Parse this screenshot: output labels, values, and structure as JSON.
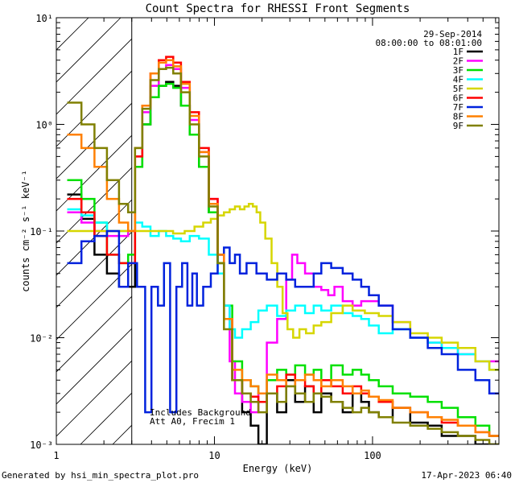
{
  "chart_data": {
    "type": "line",
    "title": "Count Spectra for RHESSI Front Segments",
    "xlabel": "Energy (keV)",
    "ylabel": "counts cm⁻² s⁻¹ keV⁻¹",
    "x_scale": "log",
    "y_scale": "log",
    "xlim": [
      1,
      630
    ],
    "ylim": [
      0.001,
      10
    ],
    "x_tick_labels": [
      "1",
      "10",
      "100"
    ],
    "y_tick_labels": [
      "10⁻³",
      "10⁻²",
      "10⁻¹",
      "10⁰",
      "10¹"
    ],
    "hatched_region_xmax": 3,
    "date": "29-Sep-2014",
    "time_range": "08:00:00 to 08:01:00",
    "annotations": [
      "Includes Background",
      "Att A0, Frecim 1"
    ],
    "legend_position": "top-right",
    "series": [
      {
        "name": "1F",
        "color": "#000000",
        "x": [
          1.3,
          1.6,
          1.9,
          2.3,
          2.7,
          3.0,
          3.3,
          3.7,
          4.2,
          4.7,
          5.2,
          5.8,
          6.5,
          7.5,
          8.5,
          10,
          11,
          12,
          14,
          16,
          18,
          20,
          23,
          27,
          30,
          35,
          40,
          45,
          50,
          60,
          70,
          80,
          90,
          100,
          120,
          150,
          200,
          250,
          300,
          400,
          500,
          600
        ],
        "y": [
          0.22,
          0.13,
          0.06,
          0.04,
          0.03,
          0.03,
          0.4,
          1.0,
          1.8,
          2.3,
          2.5,
          2.3,
          1.5,
          0.8,
          0.4,
          0.15,
          0.05,
          0.015,
          0.004,
          0.002,
          0.0015,
          0.001,
          0.003,
          0.002,
          0.004,
          0.0025,
          0.0035,
          0.002,
          0.003,
          0.0025,
          0.002,
          0.003,
          0.0025,
          0.002,
          0.0018,
          0.0022,
          0.0016,
          0.0015,
          0.0012,
          0.0012,
          0.001,
          0.001
        ]
      },
      {
        "name": "2F",
        "color": "#ff00ff",
        "x": [
          1.3,
          1.6,
          1.9,
          2.3,
          2.7,
          3.0,
          3.3,
          3.7,
          4.2,
          4.7,
          5.2,
          5.8,
          6.5,
          7.5,
          8.5,
          10,
          11,
          12,
          13,
          14,
          16,
          18,
          20,
          23,
          27,
          30,
          32,
          35,
          40,
          45,
          50,
          55,
          60,
          70,
          80,
          90,
          100,
          120,
          150,
          200,
          250,
          300,
          400,
          500,
          600
        ],
        "y": [
          0.15,
          0.12,
          0.1,
          0.09,
          0.09,
          0.1,
          0.5,
          1.3,
          2.3,
          3.3,
          3.6,
          3.3,
          2.2,
          1.1,
          0.55,
          0.2,
          0.06,
          0.02,
          0.006,
          0.003,
          0.0025,
          0.002,
          0.003,
          0.009,
          0.015,
          0.035,
          0.06,
          0.05,
          0.04,
          0.03,
          0.028,
          0.025,
          0.03,
          0.022,
          0.02,
          0.022,
          0.022,
          0.02,
          0.014,
          0.01,
          0.009,
          0.008,
          0.007,
          0.006,
          0.006
        ]
      },
      {
        "name": "3F",
        "color": "#00e000",
        "x": [
          1.3,
          1.6,
          1.9,
          2.3,
          2.7,
          3.0,
          3.3,
          3.7,
          4.2,
          4.7,
          5.2,
          5.8,
          6.5,
          7.5,
          8.5,
          10,
          11,
          12,
          14,
          16,
          18,
          20,
          23,
          27,
          30,
          35,
          40,
          45,
          50,
          60,
          70,
          80,
          90,
          100,
          120,
          150,
          200,
          250,
          300,
          400,
          500,
          600
        ],
        "y": [
          0.3,
          0.2,
          0.12,
          0.06,
          0.05,
          0.06,
          0.4,
          1.0,
          1.8,
          2.3,
          2.4,
          2.2,
          1.5,
          0.8,
          0.4,
          0.15,
          0.05,
          0.02,
          0.006,
          0.004,
          0.0035,
          0.003,
          0.004,
          0.005,
          0.0045,
          0.0055,
          0.0045,
          0.005,
          0.004,
          0.0055,
          0.0045,
          0.005,
          0.0045,
          0.004,
          0.0035,
          0.003,
          0.0028,
          0.0025,
          0.0022,
          0.0018,
          0.0015,
          0.0012
        ]
      },
      {
        "name": "4F",
        "color": "#00ffff",
        "x": [
          1.3,
          1.6,
          1.9,
          2.3,
          2.7,
          3.0,
          3.3,
          3.7,
          4.2,
          4.7,
          5.2,
          5.8,
          6.5,
          7.5,
          8.5,
          10,
          11,
          12,
          13,
          14,
          16,
          18,
          20,
          23,
          27,
          30,
          35,
          40,
          45,
          50,
          60,
          70,
          80,
          90,
          100,
          120,
          150,
          200,
          250,
          300,
          400,
          500,
          600
        ],
        "y": [
          0.16,
          0.14,
          0.12,
          0.1,
          0.1,
          0.1,
          0.12,
          0.11,
          0.09,
          0.1,
          0.09,
          0.085,
          0.08,
          0.09,
          0.085,
          0.06,
          0.04,
          0.02,
          0.012,
          0.01,
          0.012,
          0.014,
          0.018,
          0.02,
          0.016,
          0.018,
          0.02,
          0.017,
          0.02,
          0.018,
          0.02,
          0.017,
          0.016,
          0.015,
          0.013,
          0.011,
          0.012,
          0.01,
          0.009,
          0.008,
          0.007,
          0.006,
          0.005
        ]
      },
      {
        "name": "5F",
        "color": "#d6d600",
        "x": [
          1.3,
          1.6,
          1.9,
          2.3,
          2.7,
          3.0,
          3.5,
          4.0,
          4.5,
          5.0,
          6.0,
          7.0,
          8.0,
          9.0,
          10,
          11,
          12,
          13,
          14,
          15,
          16,
          17,
          18,
          19,
          20,
          22,
          24,
          26,
          28,
          30,
          33,
          36,
          40,
          45,
          50,
          60,
          70,
          80,
          100,
          120,
          150,
          200,
          250,
          300,
          400,
          500,
          600
        ],
        "y": [
          0.1,
          0.1,
          0.1,
          0.1,
          0.1,
          0.1,
          0.1,
          0.1,
          0.1,
          0.1,
          0.095,
          0.1,
          0.11,
          0.12,
          0.13,
          0.14,
          0.15,
          0.16,
          0.17,
          0.16,
          0.17,
          0.18,
          0.17,
          0.15,
          0.12,
          0.085,
          0.05,
          0.03,
          0.017,
          0.012,
          0.01,
          0.012,
          0.011,
          0.013,
          0.014,
          0.017,
          0.02,
          0.018,
          0.017,
          0.016,
          0.014,
          0.011,
          0.01,
          0.009,
          0.008,
          0.006,
          0.005
        ]
      },
      {
        "name": "6F",
        "color": "#ff0000",
        "x": [
          1.3,
          1.6,
          1.9,
          2.3,
          2.7,
          3.0,
          3.3,
          3.7,
          4.2,
          4.7,
          5.2,
          5.8,
          6.5,
          7.5,
          8.5,
          10,
          11,
          12,
          14,
          16,
          18,
          20,
          23,
          27,
          30,
          35,
          40,
          45,
          50,
          60,
          70,
          80,
          90,
          100,
          120,
          150,
          200,
          250,
          300,
          400,
          500,
          600
        ],
        "y": [
          0.2,
          0.15,
          0.09,
          0.06,
          0.05,
          0.05,
          0.5,
          1.5,
          3.0,
          4.0,
          4.3,
          3.8,
          2.5,
          1.3,
          0.6,
          0.2,
          0.06,
          0.015,
          0.004,
          0.003,
          0.0028,
          0.0025,
          0.003,
          0.0035,
          0.0045,
          0.004,
          0.0035,
          0.003,
          0.004,
          0.0035,
          0.003,
          0.0035,
          0.003,
          0.0028,
          0.0025,
          0.0022,
          0.002,
          0.0018,
          0.0016,
          0.0015,
          0.0013,
          0.0012
        ]
      },
      {
        "name": "7F",
        "color": "#0022dd",
        "x": [
          1.3,
          1.6,
          1.9,
          2.3,
          2.7,
          3.0,
          3.5,
          3.8,
          4.2,
          4.6,
          5.0,
          5.5,
          6.0,
          6.5,
          7.0,
          7.5,
          8.0,
          9.0,
          10,
          11,
          12,
          13,
          14,
          15,
          17,
          20,
          23,
          27,
          30,
          35,
          40,
          45,
          50,
          60,
          70,
          80,
          90,
          100,
          120,
          150,
          200,
          250,
          300,
          400,
          500,
          600
        ],
        "y": [
          0.05,
          0.08,
          0.09,
          0.1,
          0.03,
          0.05,
          0.03,
          0.002,
          0.03,
          0.02,
          0.05,
          0.002,
          0.03,
          0.05,
          0.02,
          0.04,
          0.02,
          0.03,
          0.04,
          0.06,
          0.07,
          0.05,
          0.06,
          0.04,
          0.05,
          0.04,
          0.035,
          0.04,
          0.035,
          0.03,
          0.03,
          0.04,
          0.05,
          0.045,
          0.04,
          0.035,
          0.03,
          0.025,
          0.02,
          0.012,
          0.01,
          0.008,
          0.007,
          0.005,
          0.004,
          0.003
        ]
      },
      {
        "name": "8F",
        "color": "#ff8000",
        "x": [
          1.3,
          1.6,
          1.9,
          2.3,
          2.7,
          3.0,
          3.3,
          3.7,
          4.2,
          4.7,
          5.2,
          5.8,
          6.5,
          7.5,
          8.5,
          10,
          11,
          12,
          14,
          16,
          18,
          20,
          23,
          27,
          30,
          35,
          40,
          45,
          50,
          60,
          70,
          80,
          90,
          100,
          120,
          150,
          200,
          250,
          300,
          400,
          500,
          600
        ],
        "y": [
          0.8,
          0.6,
          0.4,
          0.2,
          0.12,
          0.1,
          0.6,
          1.5,
          3.0,
          3.8,
          4.0,
          3.5,
          2.4,
          1.2,
          0.55,
          0.18,
          0.06,
          0.015,
          0.005,
          0.004,
          0.0035,
          0.003,
          0.0045,
          0.004,
          0.0035,
          0.004,
          0.0045,
          0.004,
          0.0035,
          0.004,
          0.0035,
          0.003,
          0.0032,
          0.0028,
          0.0026,
          0.0022,
          0.002,
          0.0018,
          0.0017,
          0.0015,
          0.0013,
          0.0012
        ]
      },
      {
        "name": "9F",
        "color": "#808000",
        "x": [
          1.3,
          1.6,
          1.9,
          2.3,
          2.7,
          3.0,
          3.3,
          3.7,
          4.2,
          4.7,
          5.2,
          5.8,
          6.5,
          7.5,
          8.5,
          10,
          11,
          12,
          14,
          16,
          18,
          20,
          23,
          27,
          30,
          35,
          40,
          45,
          50,
          60,
          70,
          80,
          90,
          100,
          120,
          150,
          200,
          250,
          300,
          400,
          500,
          600
        ],
        "y": [
          1.6,
          1.0,
          0.6,
          0.3,
          0.18,
          0.15,
          0.6,
          1.4,
          2.6,
          3.3,
          3.4,
          3.0,
          2.0,
          1.0,
          0.5,
          0.17,
          0.05,
          0.012,
          0.004,
          0.003,
          0.0025,
          0.002,
          0.003,
          0.0025,
          0.0035,
          0.003,
          0.0025,
          0.003,
          0.0028,
          0.0025,
          0.0022,
          0.002,
          0.0022,
          0.002,
          0.0018,
          0.0016,
          0.0015,
          0.0014,
          0.0013,
          0.0012,
          0.0011,
          0.001
        ]
      }
    ]
  },
  "footer": {
    "generated_by": "Generated by hsi_min_spectra_plot.pro",
    "timestamp": "17-Apr-2023 06:40"
  }
}
